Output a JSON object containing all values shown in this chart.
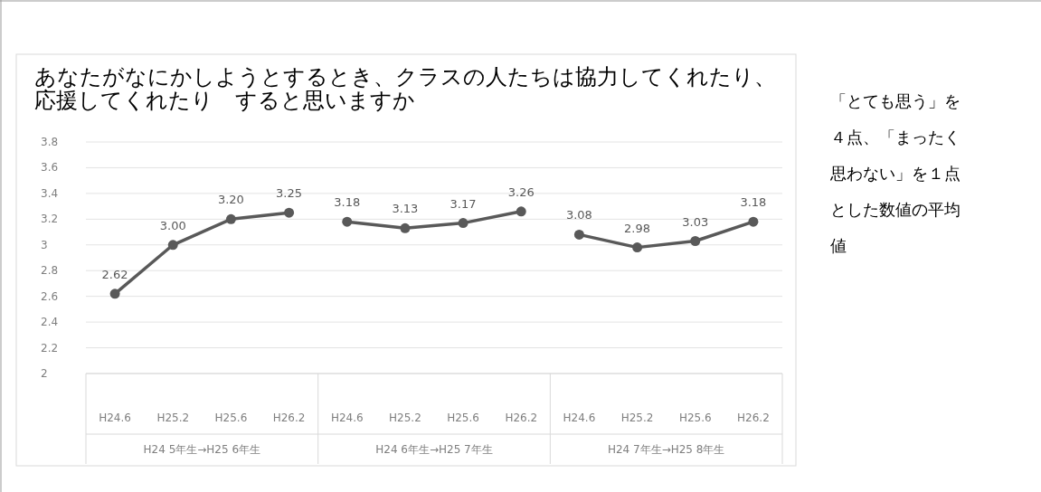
{
  "chart_data": {
    "type": "line",
    "title": "あなたがなにかしようとするとき、クラスの人たちは協力してくれたり、応援してくれたり　すると思いますか",
    "categories": [
      "H24.6",
      "H25.2",
      "H25.6",
      "H26.2",
      "H24.6",
      "H25.2",
      "H25.6",
      "H26.2",
      "H24.6",
      "H25.2",
      "H25.6",
      "H26.2"
    ],
    "series": [
      {
        "color": "#595959",
        "values": [
          2.62,
          3.0,
          3.2,
          3.25,
          null,
          null,
          null,
          null,
          null,
          null,
          null,
          null
        ],
        "value_labels": [
          "2.62",
          "3.00",
          "3.20",
          "3.25",
          null,
          null,
          null,
          null,
          null,
          null,
          null,
          null
        ]
      },
      {
        "color": "#595959",
        "values": [
          null,
          null,
          null,
          null,
          3.18,
          3.13,
          3.17,
          3.26,
          null,
          null,
          null,
          null
        ],
        "value_labels": [
          null,
          null,
          null,
          null,
          "3.18",
          "3.13",
          "3.17",
          "3.26",
          null,
          null,
          null,
          null
        ]
      },
      {
        "color": "#595959",
        "values": [
          null,
          null,
          null,
          null,
          null,
          null,
          null,
          null,
          3.08,
          2.98,
          3.03,
          3.18
        ],
        "value_labels": [
          null,
          null,
          null,
          null,
          null,
          null,
          null,
          null,
          "3.08",
          "2.98",
          "3.03",
          "3.18"
        ]
      }
    ],
    "ylim": [
      2,
      3.8
    ],
    "yticks": [
      2,
      2.2,
      2.4,
      2.6,
      2.8,
      3,
      3.2,
      3.4,
      3.6,
      3.8
    ],
    "grid": "y",
    "marker": "circle",
    "line_style": "solid",
    "annotations": [
      "H24 5年生→H25 6年生",
      "H24 6年生→H25 7年生",
      "H24 7年生→H25 8年生",
      "「とても思う」を４点、「まったく思わない」を１点とした数値の平均値"
    ]
  }
}
